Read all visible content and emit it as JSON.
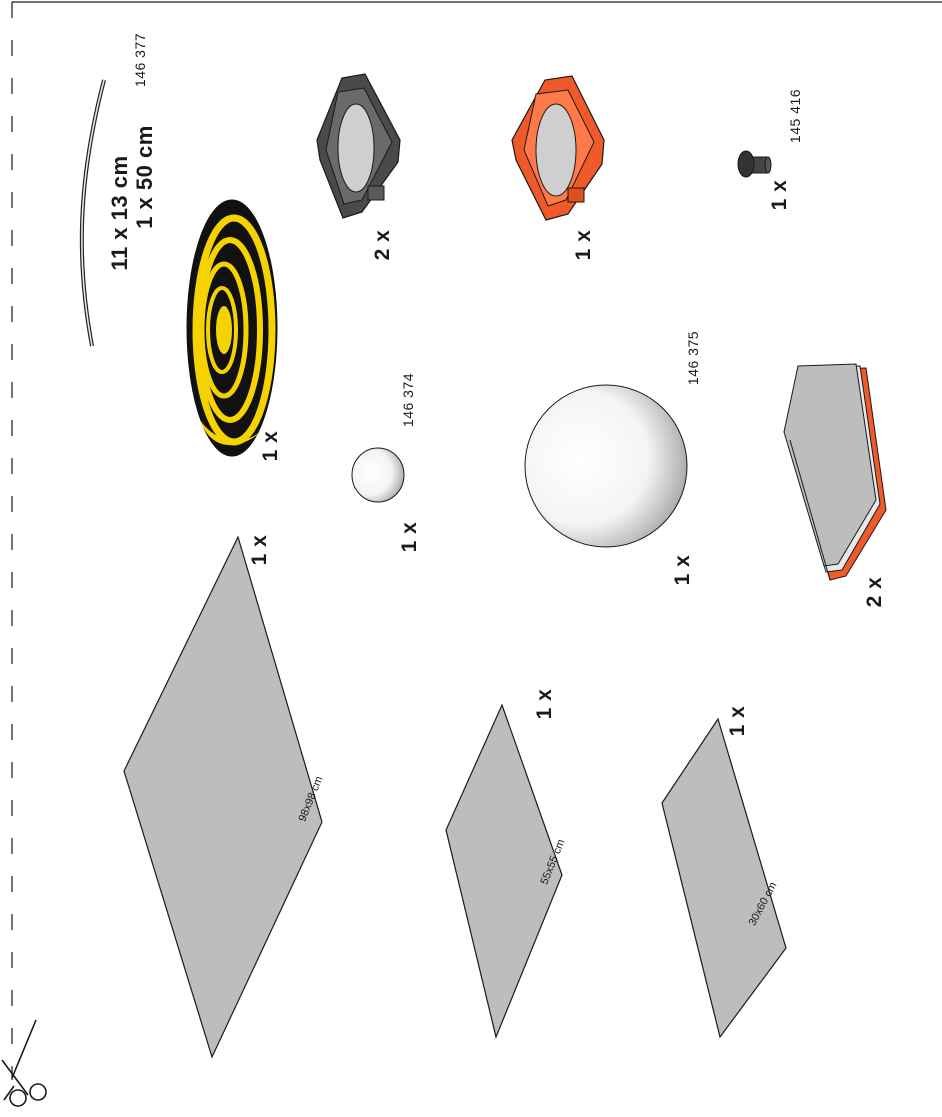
{
  "colors": {
    "panel": "#bdbdbd",
    "stroke": "#1a1a1a",
    "yellow": "#f5d300",
    "black": "#111111",
    "orange": "#f05a28",
    "dark_gray": "#4a4a4a"
  },
  "icons": [
    "scissors-icon"
  ],
  "parts": {
    "wire": {
      "part_number": "146 377"
    },
    "spiral_disc": {
      "quantity": "1 x"
    },
    "dark_clamp": {
      "quantity": "2 x"
    },
    "orange_clamp": {
      "quantity": "1 x"
    },
    "small_pin": {
      "part_number": "145 416",
      "quantity": "1 x"
    },
    "small_ball": {
      "part_number": "146 374",
      "quantity": "1 x"
    },
    "large_ball": {
      "part_number": "146 375",
      "quantity": "1 x"
    },
    "stacked_block": {
      "quantity": "2 x"
    },
    "large_panel": {
      "size": "98x98 cm",
      "quantity": "1 x"
    },
    "medium_panel": {
      "size": "55x55 cm",
      "quantity": "1 x"
    },
    "small_panel": {
      "size": "30x60 cm",
      "quantity": "1 x"
    }
  },
  "wire_dimensions": {
    "line1": "11 x 13 cm",
    "line2": "1 x 50 cm"
  }
}
